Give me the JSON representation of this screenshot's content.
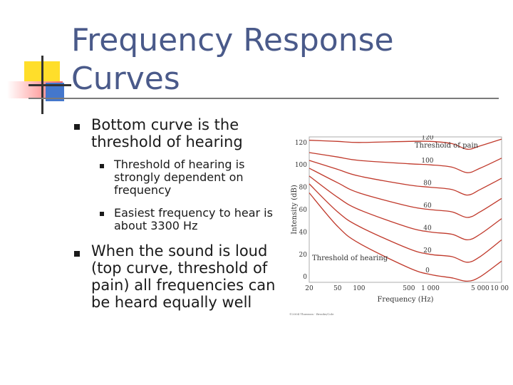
{
  "slide": {
    "title": "Frequency Response Curves",
    "bullets": [
      {
        "text": "Bottom curve is the threshold of hearing",
        "sub": [
          "Threshold of hearing is strongly dependent on frequency",
          "Easiest frequency to hear is about 3300 Hz"
        ]
      },
      {
        "text": "When the sound is loud (top curve, threshold of pain) all frequencies can be heard equally well",
        "sub": []
      }
    ]
  },
  "chart_data": {
    "type": "line",
    "title": "",
    "xlabel": "Frequency (Hz)",
    "ylabel": "Intensity (dB)",
    "xscale": "log",
    "xlim": [
      20,
      10000
    ],
    "ylim": [
      -5,
      125
    ],
    "x_ticks": [
      "20",
      "50",
      "100",
      "500",
      "1 000",
      "5 000",
      "10 000"
    ],
    "y_ticks": [
      "0",
      "20",
      "40",
      "60",
      "80",
      "100",
      "120"
    ],
    "annotations": {
      "top": "Threshold of pain",
      "bottom": "Threshold of hearing"
    },
    "curve_labels": [
      "120",
      "100",
      "80",
      "60",
      "40",
      "20",
      "0"
    ],
    "credit": "©2004 Thomson - Brooks/Cole",
    "line_color": "#c0392b",
    "series": [
      {
        "x": [
          20,
          50,
          100,
          500,
          1000,
          2000,
          3300,
          5000,
          10000
        ],
        "y": [
          122,
          121,
          120,
          121,
          121,
          119,
          114,
          117,
          123
        ]
      },
      {
        "x": [
          20,
          50,
          100,
          500,
          1000,
          2000,
          3300,
          5000,
          10000
        ],
        "y": [
          111,
          107,
          104,
          101,
          100,
          98,
          93,
          97,
          106
        ]
      },
      {
        "x": [
          20,
          50,
          100,
          500,
          1000,
          2000,
          3300,
          5000,
          10000
        ],
        "y": [
          104,
          96,
          90,
          82,
          80,
          78,
          73,
          78,
          88
        ]
      },
      {
        "x": [
          20,
          50,
          100,
          500,
          1000,
          2000,
          3300,
          5000,
          10000
        ],
        "y": [
          97,
          84,
          75,
          63,
          60,
          58,
          53,
          58,
          70
        ]
      },
      {
        "x": [
          20,
          50,
          100,
          500,
          1000,
          2000,
          3300,
          5000,
          10000
        ],
        "y": [
          90,
          71,
          60,
          44,
          40,
          38,
          33,
          38,
          52
        ]
      },
      {
        "x": [
          20,
          50,
          100,
          500,
          1000,
          2000,
          3300,
          5000,
          10000
        ],
        "y": [
          83,
          58,
          45,
          25,
          20,
          18,
          13,
          18,
          33
        ]
      },
      {
        "x": [
          20,
          50,
          100,
          500,
          1000,
          2000,
          3300,
          5000,
          10000
        ],
        "y": [
          75,
          45,
          30,
          8,
          2,
          -1,
          -4,
          0,
          14
        ]
      }
    ]
  }
}
